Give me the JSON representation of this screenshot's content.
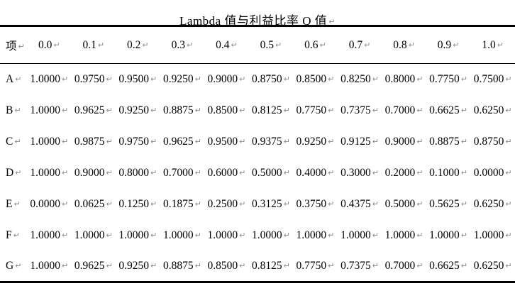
{
  "title": {
    "text": "Lambda 值与利益比率 Q 值",
    "end_mark": "↵"
  },
  "marks": {
    "cell_end_mark": "↵"
  },
  "table": {
    "corner_label": "项",
    "columns": [
      "0.0",
      "0.1",
      "0.2",
      "0.3",
      "0.4",
      "0.5",
      "0.6",
      "0.7",
      "0.8",
      "0.9",
      "1.0"
    ],
    "rows": [
      {
        "label": "A",
        "values": [
          "1.0000",
          "0.9750",
          "0.9500",
          "0.9250",
          "0.9000",
          "0.8750",
          "0.8500",
          "0.8250",
          "0.8000",
          "0.7750",
          "0.7500"
        ]
      },
      {
        "label": "B",
        "values": [
          "1.0000",
          "0.9625",
          "0.9250",
          "0.8875",
          "0.8500",
          "0.8125",
          "0.7750",
          "0.7375",
          "0.7000",
          "0.6625",
          "0.6250"
        ]
      },
      {
        "label": "C",
        "values": [
          "1.0000",
          "0.9875",
          "0.9750",
          "0.9625",
          "0.9500",
          "0.9375",
          "0.9250",
          "0.9125",
          "0.9000",
          "0.8875",
          "0.8750"
        ]
      },
      {
        "label": "D",
        "values": [
          "1.0000",
          "0.9000",
          "0.8000",
          "0.7000",
          "0.6000",
          "0.5000",
          "0.4000",
          "0.3000",
          "0.2000",
          "0.1000",
          "0.0000"
        ]
      },
      {
        "label": "E",
        "values": [
          "0.0000",
          "0.0625",
          "0.1250",
          "0.1875",
          "0.2500",
          "0.3125",
          "0.3750",
          "0.4375",
          "0.5000",
          "0.5625",
          "0.6250"
        ]
      },
      {
        "label": "F",
        "values": [
          "1.0000",
          "1.0000",
          "1.0000",
          "1.0000",
          "1.0000",
          "1.0000",
          "1.0000",
          "1.0000",
          "1.0000",
          "1.0000",
          "1.0000"
        ]
      },
      {
        "label": "G",
        "values": [
          "1.0000",
          "0.9625",
          "0.9250",
          "0.8875",
          "0.8500",
          "0.8125",
          "0.7750",
          "0.7375",
          "0.7000",
          "0.6625",
          "0.6250"
        ]
      }
    ]
  }
}
